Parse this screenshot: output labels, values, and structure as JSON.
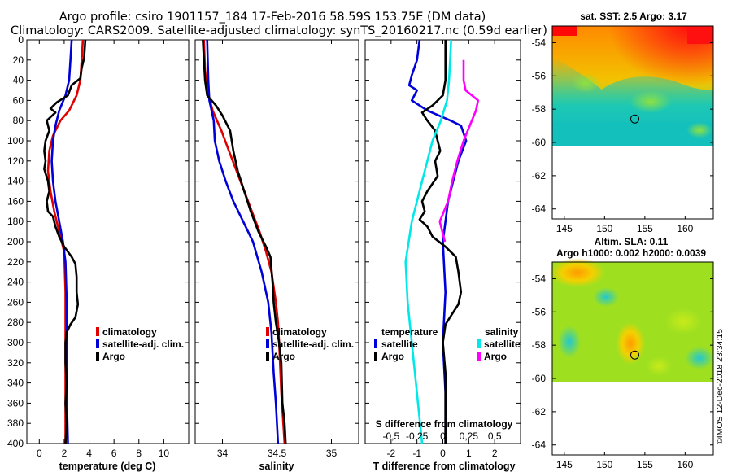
{
  "header": {
    "line1": "Argo profile: csiro 1901157_184 17-Feb-2016 58.59S 153.75E (DM data)",
    "line2": "Climatology: CARS2009. Satellite-adjusted climatology: synTS_20160217.nc (0.59d earlier)"
  },
  "credit": "©IMOS 12-Dec-2018 23:34:15",
  "colors": {
    "climatology": "#e00000",
    "satellite": "#0000d8",
    "argo": "#000000",
    "sal_satellite": "#00e8e8",
    "sal_argo": "#ff00ff"
  },
  "chart_data": [
    {
      "type": "line",
      "name": "temperature-profile",
      "xlabel": "temperature (deg C)",
      "ylabel": "",
      "xlim": [
        -1,
        12
      ],
      "ylim": [
        400,
        0
      ],
      "xticks": [
        0,
        2,
        4,
        6,
        8,
        10
      ],
      "yticks": [
        0,
        20,
        40,
        60,
        80,
        100,
        120,
        140,
        160,
        180,
        200,
        220,
        240,
        260,
        280,
        300,
        320,
        340,
        360,
        380,
        400
      ],
      "legend": [
        "climatology",
        "satellite-adj. clim.",
        "Argo"
      ],
      "series": [
        {
          "name": "climatology",
          "color": "#e00000",
          "points": [
            [
              3.5,
              0
            ],
            [
              3.4,
              20
            ],
            [
              3.3,
              40
            ],
            [
              3.0,
              55
            ],
            [
              2.4,
              70
            ],
            [
              1.7,
              80
            ],
            [
              1.1,
              95
            ],
            [
              0.8,
              110
            ],
            [
              0.7,
              130
            ],
            [
              0.9,
              150
            ],
            [
              1.2,
              170
            ],
            [
              1.6,
              190
            ],
            [
              2.0,
              210
            ],
            [
              2.1,
              250
            ],
            [
              2.1,
              300
            ],
            [
              2.1,
              350
            ],
            [
              2.1,
              400
            ]
          ]
        },
        {
          "name": "satellite-adj. clim.",
          "color": "#0000d8",
          "points": [
            [
              2.6,
              0
            ],
            [
              2.5,
              20
            ],
            [
              2.4,
              40
            ],
            [
              2.1,
              55
            ],
            [
              1.6,
              70
            ],
            [
              1.3,
              85
            ],
            [
              1.1,
              100
            ],
            [
              1.0,
              120
            ],
            [
              1.1,
              140
            ],
            [
              1.3,
              160
            ],
            [
              1.6,
              180
            ],
            [
              1.9,
              200
            ],
            [
              2.1,
              220
            ],
            [
              2.2,
              260
            ],
            [
              2.2,
              300
            ],
            [
              2.2,
              350
            ],
            [
              2.3,
              400
            ]
          ]
        },
        {
          "name": "Argo",
          "color": "#000000",
          "points": [
            [
              3.7,
              0
            ],
            [
              3.6,
              18
            ],
            [
              3.4,
              28
            ],
            [
              3.3,
              38
            ],
            [
              2.6,
              45
            ],
            [
              2.3,
              55
            ],
            [
              1.4,
              62
            ],
            [
              0.9,
              68
            ],
            [
              1.3,
              72
            ],
            [
              0.6,
              80
            ],
            [
              0.8,
              90
            ],
            [
              0.5,
              100
            ],
            [
              0.4,
              110
            ],
            [
              0.5,
              120
            ],
            [
              0.4,
              128
            ],
            [
              0.7,
              140
            ],
            [
              0.8,
              150
            ],
            [
              0.6,
              160
            ],
            [
              0.7,
              170
            ],
            [
              1.1,
              175
            ],
            [
              1.3,
              185
            ],
            [
              1.6,
              195
            ],
            [
              2.0,
              205
            ],
            [
              2.6,
              215
            ],
            [
              2.9,
              222
            ],
            [
              3.0,
              235
            ],
            [
              3.0,
              250
            ],
            [
              3.1,
              262
            ],
            [
              2.9,
              275
            ],
            [
              2.5,
              282
            ],
            [
              2.2,
              290
            ],
            [
              2.1,
              300
            ],
            [
              2.1,
              320
            ],
            [
              2.2,
              340
            ],
            [
              2.1,
              360
            ],
            [
              2.2,
              380
            ],
            [
              2.1,
              400
            ]
          ]
        }
      ]
    },
    {
      "type": "line",
      "name": "salinity-profile",
      "xlabel": "salinity",
      "xlim": [
        33.75,
        35.25
      ],
      "ylim": [
        400,
        0
      ],
      "xticks": [
        34,
        34.5,
        35
      ],
      "xticklabels": [
        "34",
        "34.5",
        "35"
      ],
      "legend": [
        "climatology",
        "satellite-adj. clim.",
        "Argo"
      ],
      "series": [
        {
          "name": "climatology",
          "color": "#e00000",
          "points": [
            [
              33.83,
              0
            ],
            [
              33.84,
              30
            ],
            [
              33.86,
              50
            ],
            [
              33.91,
              70
            ],
            [
              33.99,
              90
            ],
            [
              34.06,
              110
            ],
            [
              34.13,
              130
            ],
            [
              34.2,
              150
            ],
            [
              34.27,
              170
            ],
            [
              34.34,
              190
            ],
            [
              34.4,
              210
            ],
            [
              34.45,
              230
            ],
            [
              34.49,
              260
            ],
            [
              34.51,
              280
            ],
            [
              34.52,
              300
            ],
            [
              34.54,
              350
            ],
            [
              34.57,
              400
            ]
          ]
        },
        {
          "name": "satellite-adj. clim.",
          "color": "#0000d8",
          "points": [
            [
              33.86,
              0
            ],
            [
              33.87,
              40
            ],
            [
              33.88,
              60
            ],
            [
              33.9,
              70
            ],
            [
              33.92,
              80
            ],
            [
              33.93,
              100
            ],
            [
              33.97,
              120
            ],
            [
              34.03,
              140
            ],
            [
              34.1,
              160
            ],
            [
              34.19,
              180
            ],
            [
              34.28,
              200
            ],
            [
              34.36,
              230
            ],
            [
              34.42,
              260
            ],
            [
              34.45,
              290
            ],
            [
              34.47,
              330
            ],
            [
              34.49,
              360
            ],
            [
              34.51,
              400
            ]
          ]
        },
        {
          "name": "Argo",
          "color": "#000000",
          "points": [
            [
              33.82,
              0
            ],
            [
              33.83,
              20
            ],
            [
              33.84,
              40
            ],
            [
              33.86,
              55
            ],
            [
              33.94,
              65
            ],
            [
              34.0,
              75
            ],
            [
              34.07,
              90
            ],
            [
              34.1,
              110
            ],
            [
              34.14,
              130
            ],
            [
              34.2,
              150
            ],
            [
              34.26,
              170
            ],
            [
              34.33,
              190
            ],
            [
              34.4,
              205
            ],
            [
              34.44,
              215
            ],
            [
              34.46,
              240
            ],
            [
              34.47,
              260
            ],
            [
              34.49,
              280
            ],
            [
              34.52,
              300
            ],
            [
              34.54,
              320
            ],
            [
              34.55,
              360
            ],
            [
              34.57,
              380
            ],
            [
              34.58,
              400
            ]
          ]
        }
      ]
    },
    {
      "type": "line",
      "name": "difference-profile",
      "xlabel": "T difference from climatology",
      "subtitle": "S difference from climatology",
      "xlim": [
        -3,
        3
      ],
      "ylim": [
        400,
        0
      ],
      "xticks": [
        -2,
        -1,
        0,
        1,
        2
      ],
      "xticklabels": [
        "-2",
        "-1",
        "0",
        "1",
        "2"
      ],
      "sticks": [
        -0.5,
        -0.25,
        0,
        0.25,
        0.5
      ],
      "sticklabels": [
        "-0,5",
        "-0,25",
        "0",
        "0,25",
        "0,5"
      ],
      "legend_temperature": {
        "title": "temperature",
        "entries": [
          "satellite",
          "Argo"
        ]
      },
      "legend_salinity": {
        "title": "salinity",
        "entries": [
          "satellite",
          "Argo"
        ]
      },
      "series": [
        {
          "name": "temperature satellite",
          "color": "#0000d8",
          "points": [
            [
              -0.9,
              0
            ],
            [
              -1.0,
              20
            ],
            [
              -1.2,
              35
            ],
            [
              -1.3,
              45
            ],
            [
              -1.0,
              50
            ],
            [
              -1.2,
              60
            ],
            [
              -0.6,
              70
            ],
            [
              0.3,
              80
            ],
            [
              0.7,
              85
            ],
            [
              0.9,
              100
            ],
            [
              0.6,
              120
            ],
            [
              0.4,
              140
            ],
            [
              0.2,
              160
            ],
            [
              0.1,
              180
            ],
            [
              0.0,
              200
            ],
            [
              0.1,
              250
            ],
            [
              0.0,
              300
            ],
            [
              0.1,
              350
            ],
            [
              0.1,
              400
            ]
          ]
        },
        {
          "name": "temperature Argo",
          "color": "#000000",
          "points": [
            [
              0.1,
              0
            ],
            [
              0.1,
              40
            ],
            [
              0.0,
              55
            ],
            [
              -0.4,
              65
            ],
            [
              -0.8,
              72
            ],
            [
              -0.6,
              80
            ],
            [
              -0.3,
              90
            ],
            [
              -0.2,
              100
            ],
            [
              -0.1,
              110
            ],
            [
              -0.3,
              120
            ],
            [
              -0.2,
              135
            ],
            [
              -0.6,
              150
            ],
            [
              -0.8,
              160
            ],
            [
              -0.7,
              170
            ],
            [
              -0.9,
              178
            ],
            [
              -0.6,
              185
            ],
            [
              -0.4,
              195
            ],
            [
              0.1,
              205
            ],
            [
              0.5,
              215
            ],
            [
              0.6,
              230
            ],
            [
              0.7,
              250
            ],
            [
              0.6,
              262
            ],
            [
              0.4,
              270
            ],
            [
              0.1,
              282
            ],
            [
              0.0,
              300
            ],
            [
              0.1,
              330
            ],
            [
              0.1,
              370
            ],
            [
              0.1,
              400
            ]
          ]
        },
        {
          "name": "salinity satellite",
          "color": "#00e8e8",
          "points": [
            [
              0.08,
              0
            ],
            [
              0.06,
              40
            ],
            [
              0.04,
              60
            ],
            [
              -0.02,
              80
            ],
            [
              -0.1,
              100
            ],
            [
              -0.2,
              140
            ],
            [
              -0.3,
              180
            ],
            [
              -0.36,
              220
            ],
            [
              -0.34,
              260
            ],
            [
              -0.3,
              300
            ],
            [
              -0.26,
              340
            ],
            [
              -0.2,
              400
            ]
          ]
        },
        {
          "name": "salinity Argo",
          "color": "#ff00ff",
          "points": [
            [
              0.2,
              20
            ],
            [
              0.2,
              40
            ],
            [
              0.22,
              50
            ],
            [
              0.34,
              60
            ],
            [
              0.32,
              70
            ],
            [
              0.26,
              85
            ],
            [
              0.2,
              100
            ],
            [
              0.14,
              120
            ],
            [
              0.09,
              140
            ],
            [
              0.05,
              160
            ],
            [
              -0.03,
              180
            ],
            [
              0.02,
              200
            ]
          ]
        }
      ]
    },
    {
      "type": "heatmap",
      "name": "sst-map",
      "title": "sat. SST: 2.5 Argo: 3.17",
      "xticks": [
        145,
        150,
        155,
        160
      ],
      "yticks": [
        -54,
        -56,
        -58,
        -60,
        -62,
        -64
      ],
      "xticklabels": [
        "145",
        "150",
        "155",
        "160"
      ],
      "yticklabels": [
        "-54",
        "-56",
        "-58",
        "-60",
        "-62",
        "-64"
      ],
      "xlim": [
        143.5,
        163.5
      ],
      "ylim": [
        -64.6,
        -53
      ],
      "data_bottom_lat": -60,
      "argo_marker": [
        153.75,
        -58.59
      ]
    },
    {
      "type": "heatmap",
      "name": "sla-map",
      "title": "Altim. SLA: 0.11",
      "subtitle": "Argo h1000: 0.002 h2000: 0.0039",
      "xticks": [
        145,
        150,
        155,
        160
      ],
      "yticks": [
        -54,
        -56,
        -58,
        -60,
        -62,
        -64
      ],
      "xticklabels": [
        "145",
        "150",
        "155",
        "160"
      ],
      "yticklabels": [
        "-54",
        "-56",
        "-58",
        "-60",
        "-62",
        "-64"
      ],
      "xlim": [
        143.5,
        163.5
      ],
      "ylim": [
        -64.6,
        -53
      ],
      "data_bottom_lat": -60,
      "argo_marker": [
        153.75,
        -58.59
      ]
    }
  ]
}
